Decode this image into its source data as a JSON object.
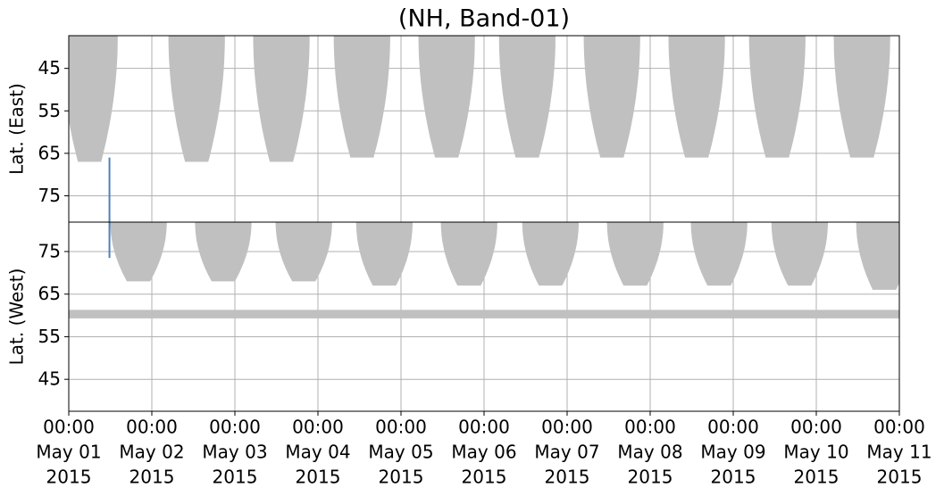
{
  "chart_data": [
    {
      "type": "coverage",
      "title": "(NH, Band-01)",
      "ylabel": "Lat. (East)",
      "xlim": [
        0,
        10
      ],
      "ylim": [
        81.2,
        37.3
      ],
      "yticks": [
        45,
        55,
        65,
        75
      ],
      "grid": true,
      "lobe_color": "#c0c0c0",
      "lobes": {
        "x": [
          0.25,
          1.54,
          2.56,
          3.53,
          4.55,
          5.52,
          6.54,
          7.56,
          8.53,
          9.55
        ],
        "lat": [
          67,
          67,
          67,
          66,
          66,
          66,
          66,
          66,
          66,
          66
        ]
      },
      "trace": {
        "color": "#4f81bd",
        "x": 0.49,
        "lat": [
          66,
          81.2
        ]
      }
    },
    {
      "type": "coverage",
      "ylabel": "Lat. (West)",
      "xlim": [
        0,
        10
      ],
      "ylim": [
        37.5,
        81.9
      ],
      "yticks": [
        45,
        55,
        65,
        75
      ],
      "grid": true,
      "lobe_color": "#c0c0c0",
      "lobes": {
        "x": [
          0.84,
          1.86,
          2.83,
          3.8,
          4.82,
          5.8,
          6.82,
          7.83,
          8.8,
          9.82
        ],
        "lat": [
          68,
          68,
          68,
          67,
          67,
          67,
          67,
          67,
          67,
          66
        ]
      },
      "band": [
        59.3,
        61.3
      ],
      "trace": {
        "color": "#4f81bd",
        "x": 0.49,
        "lat": [
          81.9,
          73.5
        ]
      },
      "xticks": [
        {
          "value": 0,
          "label": "00:00"
        },
        {
          "value": 1,
          "label": "00:00"
        },
        {
          "value": 2,
          "label": "00:00"
        },
        {
          "value": 3,
          "label": "00:00"
        },
        {
          "value": 4,
          "label": "00:00"
        },
        {
          "value": 5,
          "label": "00:00"
        },
        {
          "value": 6,
          "label": "00:00"
        },
        {
          "value": 7,
          "label": "00:00"
        },
        {
          "value": 8,
          "label": "00:00"
        },
        {
          "value": 9,
          "label": "00:00"
        },
        {
          "value": 10,
          "label": "00:00"
        }
      ],
      "xtick_dates": [
        "May 01",
        "May 02",
        "May 03",
        "May 04",
        "May 05",
        "May 06",
        "May 07",
        "May 08",
        "May 09",
        "May 10",
        "May 11"
      ],
      "xtick_years": [
        "2015",
        "2015",
        "2015",
        "2015",
        "2015",
        "2015",
        "2015",
        "2015",
        "2015",
        "2015",
        "2015"
      ]
    }
  ]
}
